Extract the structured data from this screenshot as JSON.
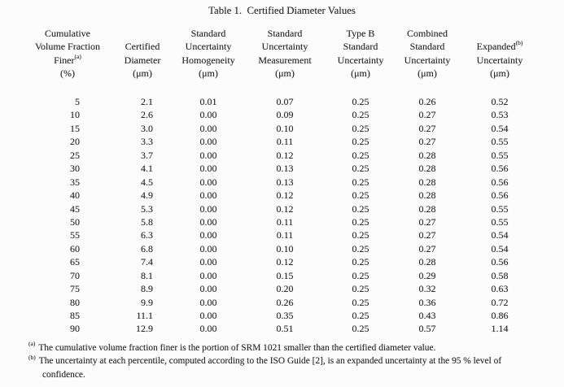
{
  "title": "Table 1.  Certified Diameter Values",
  "table": {
    "header": {
      "col1": {
        "line1": "Cumulative",
        "line2": "Volume Fraction",
        "line3": "Finer",
        "sup": "(a)",
        "unit": "(%)"
      },
      "col2": {
        "line2": "Certified",
        "line3": "Diameter",
        "unit": "(μm)"
      },
      "col3": {
        "line1": "Standard",
        "line2": "Uncertainty",
        "line3": "Homogeneity",
        "unit": "(μm)"
      },
      "col4": {
        "line1": "Standard",
        "line2": "Uncertainty",
        "line3": "Measurement",
        "unit": "(μm)"
      },
      "col5": {
        "line1": "Type B",
        "line2": "Standard",
        "line3": "Uncertainty",
        "unit": "(μm)"
      },
      "col6": {
        "line1": "Combined",
        "line2": "Standard",
        "line3": "Uncertainty",
        "unit": "(μm)"
      },
      "col7": {
        "line2": "Expanded",
        "sup": "(b)",
        "line3": "Uncertainty",
        "unit": "(μm)"
      }
    },
    "rows": [
      [
        "5",
        "2.1",
        "0.01",
        "0.07",
        "0.25",
        "0.26",
        "0.52"
      ],
      [
        "10",
        "2.6",
        "0.00",
        "0.09",
        "0.25",
        "0.27",
        "0.53"
      ],
      [
        "15",
        "3.0",
        "0.00",
        "0.10",
        "0.25",
        "0.27",
        "0.54"
      ],
      [
        "20",
        "3.3",
        "0.00",
        "0.11",
        "0.25",
        "0.27",
        "0.55"
      ],
      [
        "25",
        "3.7",
        "0.00",
        "0.12",
        "0.25",
        "0.28",
        "0.55"
      ],
      [
        "30",
        "4.1",
        "0.00",
        "0.13",
        "0.25",
        "0.28",
        "0.56"
      ],
      [
        "35",
        "4.5",
        "0.00",
        "0.13",
        "0.25",
        "0.28",
        "0.56"
      ],
      [
        "40",
        "4.9",
        "0.00",
        "0.12",
        "0.25",
        "0.28",
        "0.56"
      ],
      [
        "45",
        "5.3",
        "0.00",
        "0.12",
        "0.25",
        "0.28",
        "0.55"
      ],
      [
        "50",
        "5.8",
        "0.00",
        "0.11",
        "0.25",
        "0.27",
        "0.55"
      ],
      [
        "55",
        "6.3",
        "0.00",
        "0.11",
        "0.25",
        "0.27",
        "0.54"
      ],
      [
        "60",
        "6.8",
        "0.00",
        "0.10",
        "0.25",
        "0.27",
        "0.54"
      ],
      [
        "65",
        "7.4",
        "0.00",
        "0.12",
        "0.25",
        "0.28",
        "0.56"
      ],
      [
        "70",
        "8.1",
        "0.00",
        "0.15",
        "0.25",
        "0.29",
        "0.58"
      ],
      [
        "75",
        "8.9",
        "0.00",
        "0.20",
        "0.25",
        "0.32",
        "0.63"
      ],
      [
        "80",
        "9.9",
        "0.00",
        "0.26",
        "0.25",
        "0.36",
        "0.72"
      ],
      [
        "85",
        "11.1",
        "0.00",
        "0.35",
        "0.25",
        "0.43",
        "0.86"
      ],
      [
        "90",
        "12.9",
        "0.00",
        "0.51",
        "0.25",
        "0.57",
        "1.14"
      ]
    ]
  },
  "footnotes": {
    "a": {
      "marker": "(a)",
      "text": "The cumulative volume fraction finer is the portion of SRM 1021 smaller than the certified diameter value."
    },
    "b": {
      "marker": "(b)",
      "text": "The uncertainty at each percentile, computed according to the ISO Guide [2], is an expanded uncertainty at the 95 % level of",
      "cont": "confidence."
    }
  },
  "colors": {
    "background": "#fcfcfc",
    "text": "#262626"
  }
}
